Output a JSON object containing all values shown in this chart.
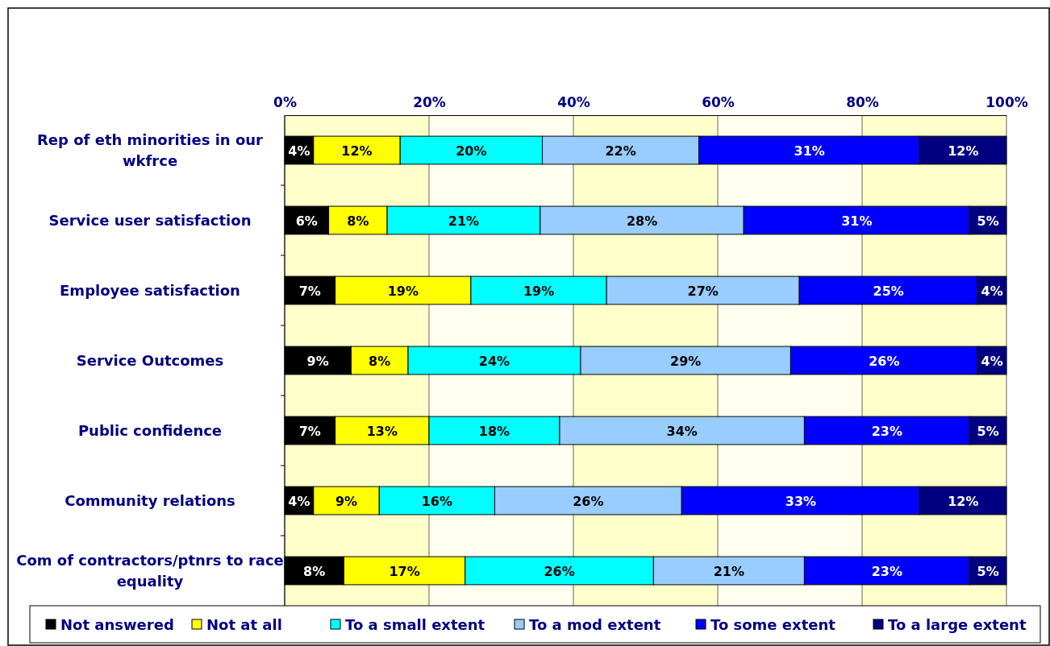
{
  "chart_data": {
    "type": "bar",
    "orientation": "horizontal",
    "stacked": true,
    "categories": [
      "Rep of eth minorities in our wkfrce",
      "Service user satisfaction",
      "Employee satisfaction",
      "Service Outcomes",
      "Public confidence",
      "Community relations",
      "Com of contractors/ptnrs to race equality"
    ],
    "series": [
      {
        "name": "Not answered",
        "color": "#000000",
        "values": [
          4,
          6.1,
          7,
          9.2,
          7,
          4,
          8.2
        ],
        "value_labels": [
          "4%",
          "6%",
          "7%",
          "9%",
          "7%",
          "4%",
          "8%"
        ]
      },
      {
        "name": "Not at all",
        "color": "#ffff00",
        "values": [
          12,
          8.1,
          18.8,
          7.9,
          13,
          9.1,
          16.8
        ],
        "value_labels": [
          "12%",
          "8%",
          "19%",
          "8%",
          "13%",
          "9%",
          "17%"
        ]
      },
      {
        "name": "To a small extent",
        "color": "#00ffff",
        "values": [
          19.7,
          21.2,
          18.8,
          23.9,
          18.1,
          16,
          26.1
        ],
        "value_labels": [
          "20%",
          "21%",
          "19%",
          "24%",
          "18%",
          "16%",
          "26%"
        ]
      },
      {
        "name": "To a mod extent",
        "color": "#99ccff",
        "values": [
          21.7,
          28.2,
          26.7,
          29.1,
          33.9,
          25.9,
          20.9
        ],
        "value_labels": [
          "22%",
          "28%",
          "27%",
          "29%",
          "34%",
          "26%",
          "21%"
        ]
      },
      {
        "name": "To some extent",
        "color": "#0000ff",
        "values": [
          30.6,
          31.3,
          24.7,
          25.9,
          22.9,
          33,
          22.9
        ],
        "value_labels": [
          "31%",
          "31%",
          "25%",
          "26%",
          "23%",
          "33%",
          "23%"
        ]
      },
      {
        "name": "To a large extent",
        "color": "#000080",
        "values": [
          12,
          5.1,
          4,
          4,
          5.1,
          12,
          5.1
        ],
        "value_labels": [
          "12%",
          "5%",
          "4%",
          "4%",
          "5%",
          "12%",
          "5%"
        ]
      }
    ],
    "xlim": [
      0,
      100
    ],
    "xticks": [
      {
        "value": 0,
        "label": "0%"
      },
      {
        "value": 20,
        "label": "20%"
      },
      {
        "value": 40,
        "label": "40%"
      },
      {
        "value": 60,
        "label": "60%"
      },
      {
        "value": 80,
        "label": "80%"
      },
      {
        "value": 100,
        "label": "100%"
      }
    ],
    "grid": "x",
    "legend": "bottom"
  }
}
